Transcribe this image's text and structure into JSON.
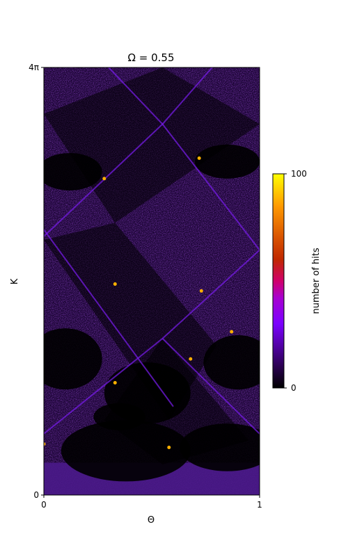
{
  "chart_data": {
    "type": "heatmap",
    "title": "Ω =  0.55",
    "xlabel": "Θ",
    "ylabel": "K",
    "xlim": [
      0,
      1
    ],
    "ylim": [
      0,
      12.566
    ],
    "x_ticks": [
      {
        "value": 0,
        "label": "0"
      },
      {
        "value": 1,
        "label": "1"
      }
    ],
    "y_ticks": [
      {
        "value": 0,
        "label": "0"
      },
      {
        "value": 12.566,
        "label": "4π"
      }
    ],
    "colorbar": {
      "label": "number of hits",
      "range": [
        0,
        100
      ],
      "ticks": [
        {
          "value": 0,
          "label": "0"
        },
        {
          "value": 100,
          "label": "100"
        }
      ],
      "colormap": "gnuplot"
    },
    "grid": false,
    "structures": {
      "tongue_tip_K": [
        12.566,
        8.0,
        4.4
      ],
      "tongue_tip_theta": [
        0.55,
        0.33,
        0.8
      ],
      "regions": [
        {
          "kind": "low_hits",
          "theta": [
            0.0,
            1.0
          ],
          "K": [
            0.95,
            2.8
          ]
        },
        {
          "kind": "high_hits_band",
          "theta": [
            0.0,
            1.0
          ],
          "K": [
            0.0,
            0.95
          ]
        }
      ]
    },
    "colors": {
      "background": "#000000",
      "mid": "#3a0a80",
      "bright": "#7a1cf0",
      "hot": "#ffb000"
    }
  }
}
